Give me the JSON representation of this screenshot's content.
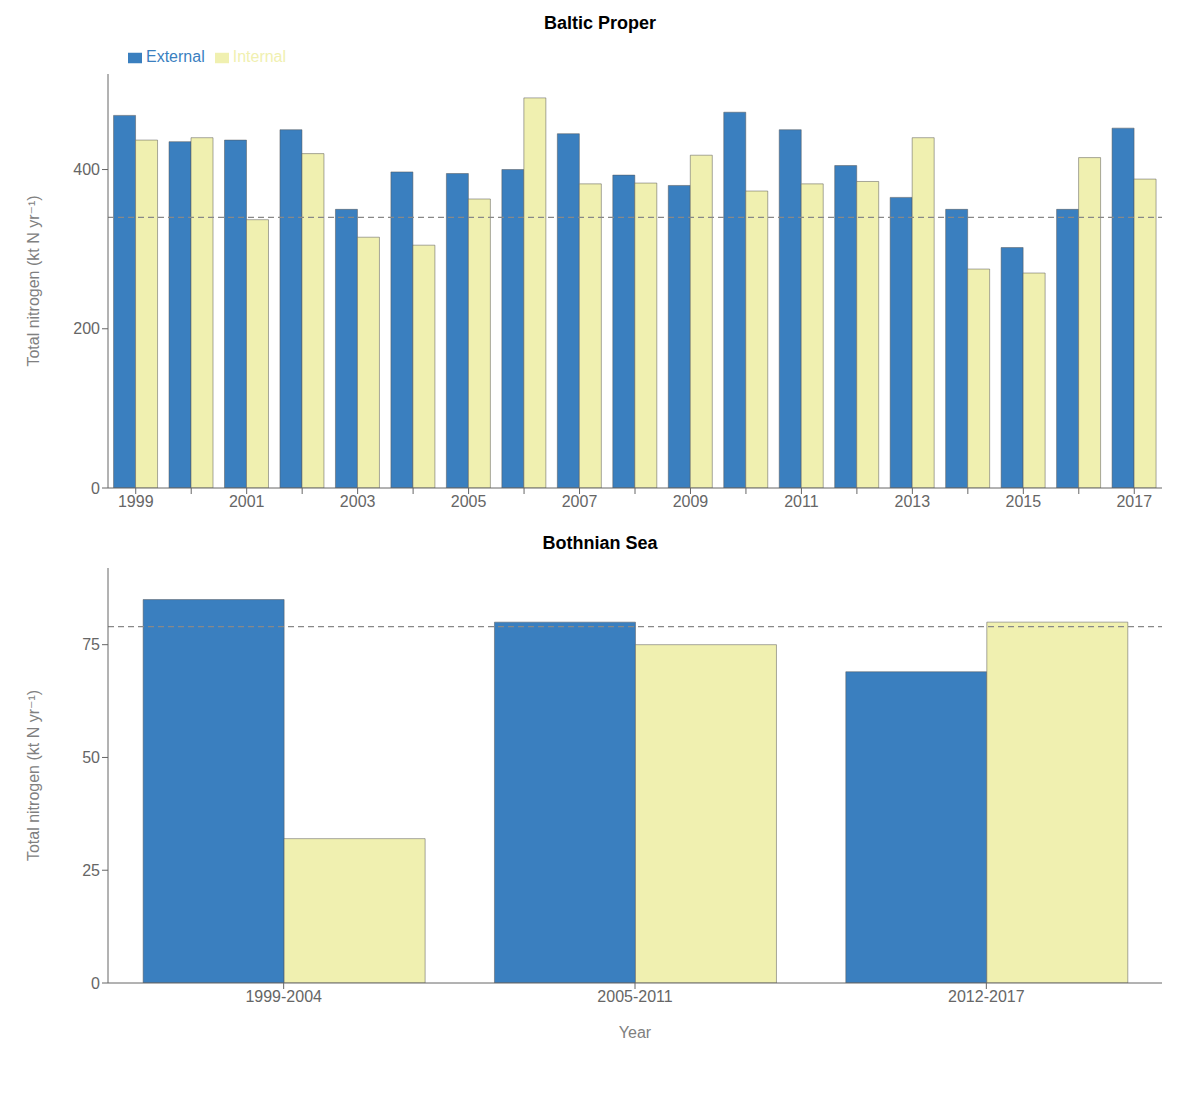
{
  "chart_data": [
    {
      "type": "bar",
      "title": "Baltic Proper",
      "categories": [
        "1999",
        null,
        "2001",
        null,
        "2003",
        null,
        "2005",
        null,
        "2007",
        null,
        "2009",
        null,
        "2011",
        null,
        "2013",
        null,
        "2015",
        null,
        "2017"
      ],
      "series": [
        {
          "name": "External",
          "color": "#3a7fbf",
          "values": [
            468,
            435,
            437,
            450,
            350,
            397,
            395,
            400,
            445,
            393,
            380,
            472,
            450,
            405,
            365,
            350,
            302,
            350,
            452
          ]
        },
        {
          "name": "Internal",
          "color": "#f0f0b0",
          "values": [
            437,
            440,
            337,
            420,
            315,
            305,
            363,
            490,
            382,
            383,
            418,
            373,
            382,
            385,
            440,
            275,
            270,
            415,
            388
          ]
        }
      ],
      "reference_line": {
        "value": 340,
        "color": "#888888",
        "line_style": "dashed"
      },
      "ylabel": "Total nitrogen (kt N yr⁻¹)",
      "ylim": [
        0,
        520
      ],
      "yticks": [
        0,
        200,
        400
      ],
      "grid": false,
      "legend": "upper left"
    },
    {
      "type": "bar",
      "title": "Bothnian Sea",
      "categories": [
        "1999-2004",
        "2005-2011",
        "2012-2017"
      ],
      "series": [
        {
          "name": "External",
          "color": "#3a7fbf",
          "values": [
            85,
            80,
            69
          ]
        },
        {
          "name": "Internal",
          "color": "#f0f0b0",
          "values": [
            32,
            75,
            80
          ]
        }
      ],
      "reference_line": {
        "value": 79,
        "color": "#888888",
        "line_style": "dashed"
      },
      "xlabel": "Year",
      "ylabel": "Total nitrogen (kt N yr⁻¹)",
      "ylim": [
        0,
        92
      ],
      "yticks": [
        0,
        25,
        50,
        75
      ],
      "grid": false
    }
  ]
}
